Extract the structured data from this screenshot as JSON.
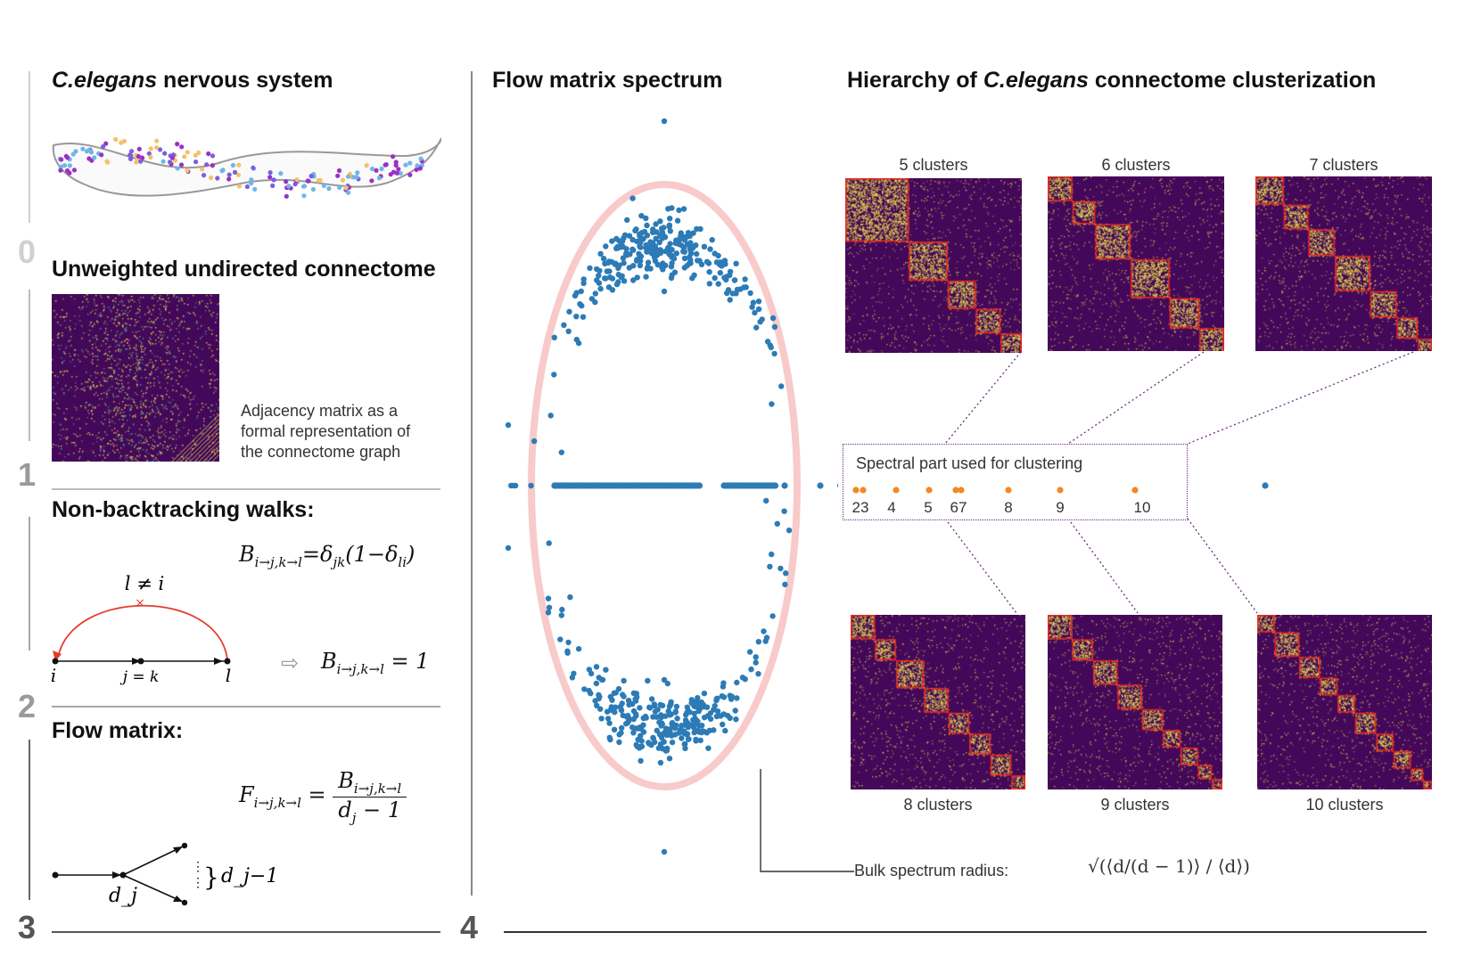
{
  "sections": {
    "s0": {
      "number": "0",
      "title_italic": "C.elegans",
      "title_rest": " nervous system"
    },
    "s1": {
      "number": "1",
      "title": "Unweighted undirected connectome",
      "caption": [
        "Adjacency matrix as a",
        "formal representation of",
        "the connectome graph"
      ]
    },
    "s2": {
      "number": "2",
      "title": "Non-backtracking walks:",
      "formula_main": "B_{i→j,k→l}=δ_{jk}(1−δ_{li})",
      "arc_label": "l ≠ i",
      "node_i": "i",
      "node_jk": "j = k",
      "node_l": "l",
      "result": "B_{i→j,k→l} = 1"
    },
    "s3": {
      "number": "3",
      "title": "Flow matrix:",
      "formula_lhs": "F_{i→j,k→l}",
      "formula_num": "B_{i→j,k→l}",
      "formula_den": "d_j − 1",
      "degree_label": "d_j",
      "branch_label": "d_j−1"
    },
    "s4": {
      "number": "4",
      "title": "Flow matrix spectrum",
      "bulk_label": "Bulk spectrum radius:",
      "bulk_formula": "√(⟨d/(d − 1)⟩ / ⟨d⟩)"
    }
  },
  "hierarchy": {
    "title_prefix": "Hierarchy of ",
    "title_italic": "C.elegans",
    "title_suffix": " connectome clusterization",
    "top_clusters": [
      {
        "label": "5 clusters",
        "blocks": [
          0.36,
          0.22,
          0.16,
          0.14,
          0.12
        ]
      },
      {
        "label": "6 clusters",
        "blocks": [
          0.14,
          0.13,
          0.2,
          0.22,
          0.17,
          0.14
        ]
      },
      {
        "label": "7 clusters",
        "blocks": [
          0.16,
          0.14,
          0.15,
          0.2,
          0.15,
          0.12,
          0.08
        ]
      }
    ],
    "bottom_clusters": [
      {
        "label": "8 clusters",
        "blocks": [
          0.14,
          0.12,
          0.16,
          0.14,
          0.12,
          0.12,
          0.12,
          0.08
        ]
      },
      {
        "label": "9 clusters",
        "blocks": [
          0.14,
          0.12,
          0.14,
          0.14,
          0.12,
          0.1,
          0.1,
          0.08,
          0.06
        ]
      },
      {
        "label": "10 clusters",
        "blocks": [
          0.1,
          0.14,
          0.12,
          0.1,
          0.1,
          0.12,
          0.1,
          0.1,
          0.07,
          0.05
        ]
      }
    ],
    "spectral_box_title": "Spectral part used for clustering",
    "spectral_ticks": [
      "23",
      "4",
      "5",
      "67",
      "8",
      "9",
      "10"
    ]
  },
  "colors": {
    "matrix_bg": "#44085a",
    "matrix_dot": "#e9d84a",
    "matrix_dot2": "#3fb0a0",
    "cluster_border": "#e5281e",
    "eigen": "#2c7bb6",
    "orange": "#f08a24",
    "ring": "#f7c1c1",
    "arc": "#e53a2a",
    "purple_dotted": "#6a2c7a"
  }
}
